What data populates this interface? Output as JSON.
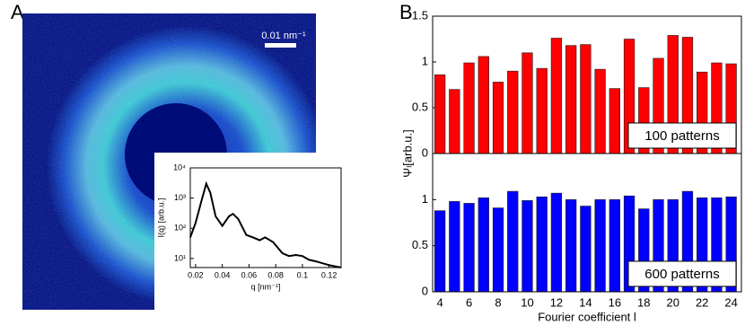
{
  "panels": {
    "a": "A",
    "b": "B"
  },
  "image": {
    "scale_bar": "0.01 nm⁻¹"
  },
  "chart_data": [
    {
      "type": "line",
      "xlabel": "q [nm⁻¹]",
      "ylabel": "I(q) [arb.u.]",
      "log_y": true,
      "color": "#000000",
      "x": [
        0.016,
        0.02,
        0.024,
        0.028,
        0.031,
        0.035,
        0.04,
        0.045,
        0.048,
        0.052,
        0.058,
        0.063,
        0.068,
        0.072,
        0.078,
        0.085,
        0.09,
        0.095,
        0.1,
        0.105,
        0.11,
        0.12,
        0.129
      ],
      "values": [
        50,
        150,
        700,
        3000,
        1500,
        250,
        120,
        250,
        300,
        200,
        60,
        50,
        40,
        50,
        35,
        15,
        12,
        13,
        12,
        9,
        8,
        6,
        5
      ],
      "xlim": [
        0.016,
        0.129
      ],
      "xticks": [
        0.02,
        0.04,
        0.06,
        0.08,
        0.1,
        0.12
      ],
      "ylim": [
        5,
        10000
      ],
      "yticks": [
        {
          "value": 10,
          "label": "10¹"
        },
        {
          "value": 100,
          "label": "10²"
        },
        {
          "value": 1000,
          "label": "10³"
        },
        {
          "value": 10000,
          "label": "10⁴"
        }
      ]
    },
    {
      "type": "bar",
      "annotation": "100 patterns",
      "ylabel": "Ψₗ[arb.u.]",
      "color": "#ff0000",
      "x": [
        4,
        5,
        6,
        7,
        8,
        9,
        10,
        11,
        12,
        13,
        14,
        15,
        16,
        17,
        18,
        19,
        20,
        21,
        22,
        23,
        24
      ],
      "values": [
        0.86,
        0.7,
        0.99,
        1.06,
        0.78,
        0.9,
        1.1,
        0.93,
        1.26,
        1.18,
        1.19,
        0.92,
        0.71,
        1.25,
        0.72,
        1.04,
        1.29,
        1.27,
        0.89,
        0.99,
        0.98
      ],
      "xlim": [
        3.5,
        24.7
      ],
      "ylim": [
        0,
        1.5
      ],
      "yticks": [
        0,
        0.5,
        1,
        1.5
      ]
    },
    {
      "type": "bar",
      "annotation": "600 patterns",
      "xlabel": "Fourier coefficient l",
      "color": "#0000ff",
      "x": [
        4,
        5,
        6,
        7,
        8,
        9,
        10,
        11,
        12,
        13,
        14,
        15,
        16,
        17,
        18,
        19,
        20,
        21,
        22,
        23,
        24
      ],
      "values": [
        0.88,
        0.98,
        0.96,
        1.02,
        0.91,
        1.09,
        0.99,
        1.03,
        1.07,
        1.0,
        0.93,
        1.0,
        1.0,
        1.04,
        0.9,
        1.0,
        1.0,
        1.09,
        1.02,
        1.02,
        1.03
      ],
      "xlim": [
        3.5,
        24.7
      ],
      "xticks": [
        4,
        6,
        8,
        10,
        12,
        14,
        16,
        18,
        20,
        22,
        24
      ],
      "ylim": [
        0,
        1.5
      ],
      "yticks": [
        0,
        0.5,
        1
      ]
    }
  ]
}
